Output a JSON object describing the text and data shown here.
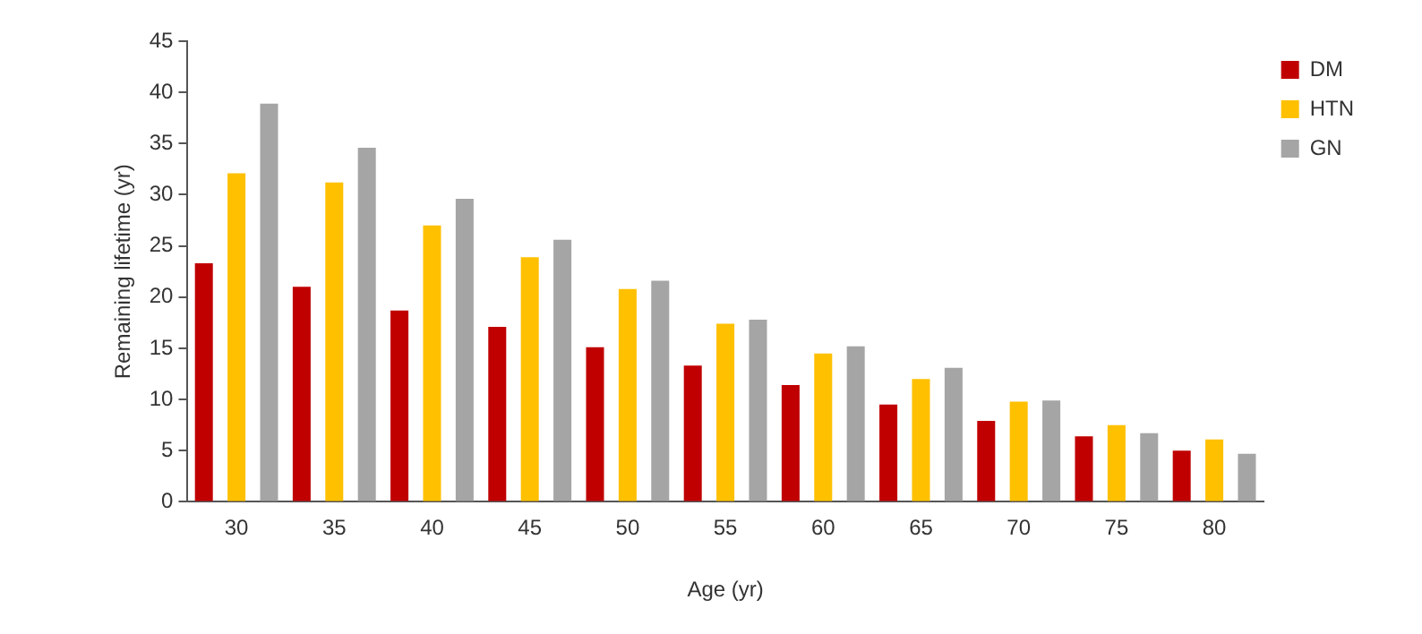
{
  "chart_data": {
    "type": "bar",
    "xlabel": "Age (yr)",
    "ylabel": "Remaining lifetime (yr)",
    "categories": [
      "30",
      "35",
      "40",
      "45",
      "50",
      "55",
      "60",
      "65",
      "70",
      "75",
      "80"
    ],
    "series": [
      {
        "name": "DM",
        "color": "#c00000",
        "values": [
          23.3,
          21.0,
          18.7,
          17.1,
          15.1,
          13.3,
          11.4,
          9.5,
          7.9,
          6.4,
          5.0
        ]
      },
      {
        "name": "HTN",
        "color": "#ffc000",
        "values": [
          32.1,
          31.2,
          27.0,
          23.9,
          20.8,
          17.4,
          14.5,
          12.0,
          9.8,
          7.5,
          6.1
        ]
      },
      {
        "name": "GN",
        "color": "#a5a5a5",
        "values": [
          38.9,
          34.6,
          29.6,
          25.6,
          21.6,
          17.8,
          15.2,
          13.1,
          9.9,
          6.7,
          4.7
        ]
      }
    ],
    "ylim": [
      0,
      45
    ],
    "yticks": [
      0,
      5,
      10,
      15,
      20,
      25,
      30,
      35,
      40,
      45
    ],
    "grid": false,
    "legend": "top right"
  }
}
